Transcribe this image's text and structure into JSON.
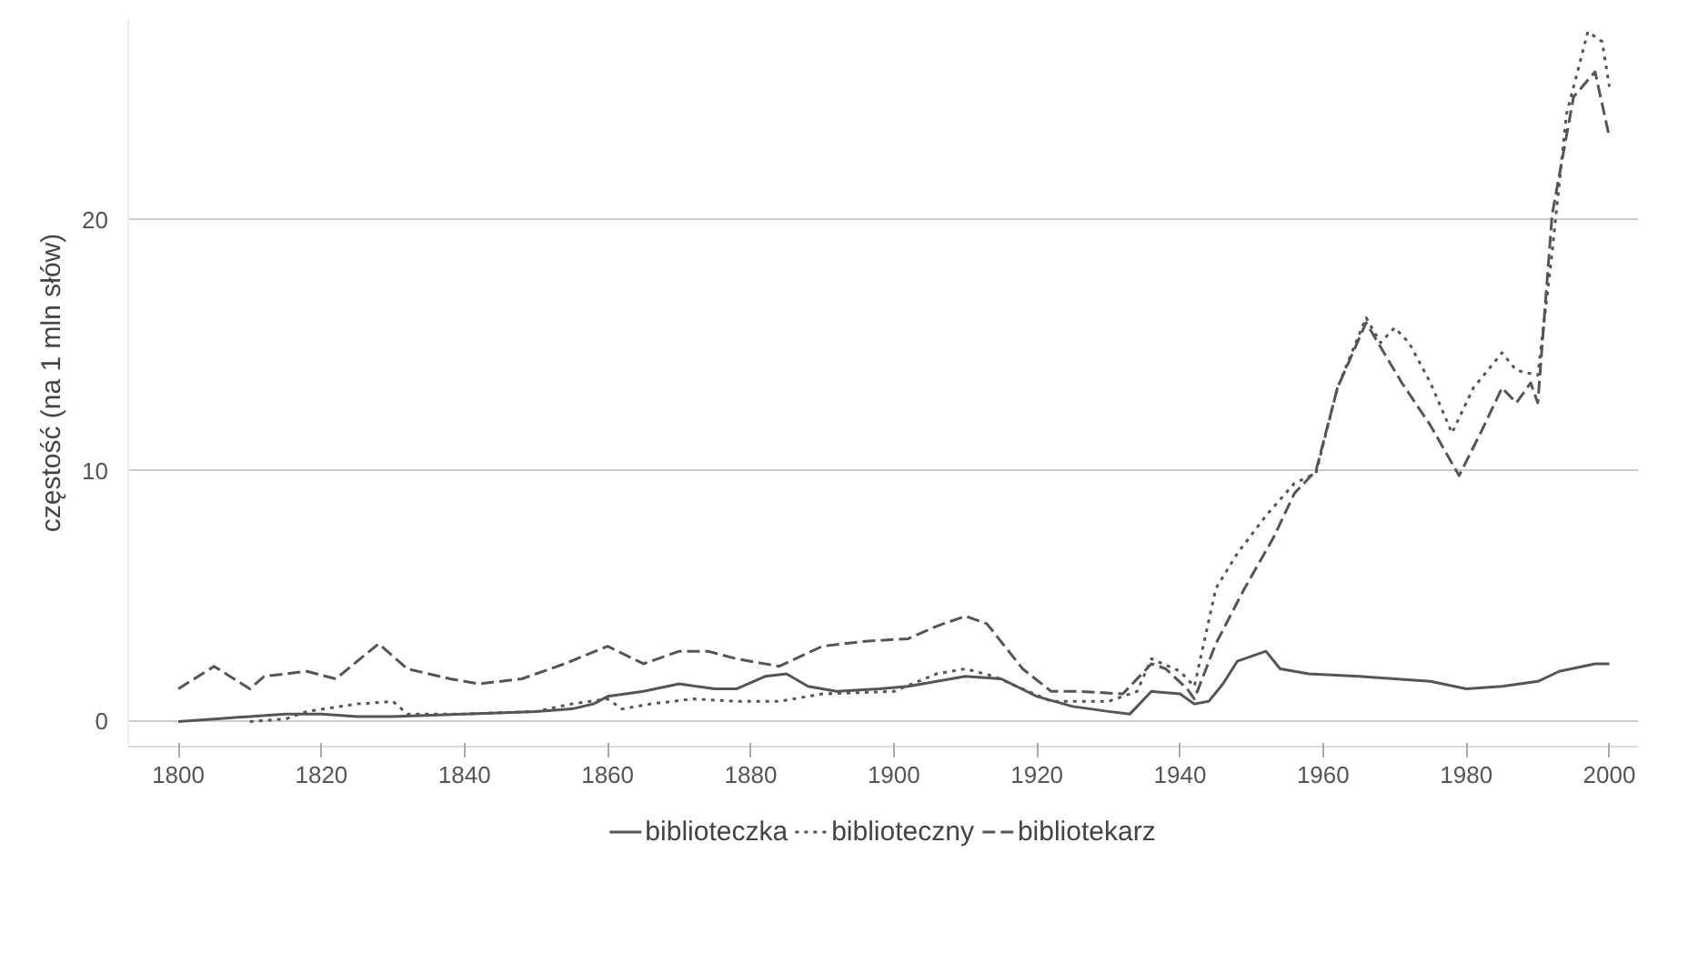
{
  "chart_data": {
    "type": "line",
    "ylabel": "częstość (na 1 mln słów)",
    "xlim": [
      1793,
      2004
    ],
    "xticks": [
      1800,
      1820,
      1840,
      1860,
      1880,
      1900,
      1920,
      1940,
      1960,
      1980,
      2000
    ],
    "ylim": [
      -1,
      28
    ],
    "yticks": [
      0,
      10,
      20
    ],
    "grid": "y",
    "legend": "bottom",
    "series": [
      {
        "name": "biblioteczka",
        "color": "#555555",
        "line_style": "solid",
        "x": [
          1800,
          1805,
          1810,
          1815,
          1820,
          1825,
          1830,
          1840,
          1850,
          1855,
          1858,
          1860,
          1865,
          1870,
          1875,
          1878,
          1882,
          1885,
          1888,
          1892,
          1898,
          1902,
          1906,
          1910,
          1915,
          1920,
          1925,
          1930,
          1933,
          1936,
          1940,
          1942,
          1944,
          1946,
          1948,
          1952,
          1954,
          1958,
          1965,
          1970,
          1975,
          1980,
          1985,
          1990,
          1993,
          1998,
          2000
        ],
        "values": [
          0,
          0.1,
          0.2,
          0.3,
          0.3,
          0.2,
          0.2,
          0.3,
          0.4,
          0.5,
          0.7,
          1.0,
          1.2,
          1.5,
          1.3,
          1.3,
          1.8,
          1.9,
          1.4,
          1.2,
          1.3,
          1.4,
          1.6,
          1.8,
          1.7,
          1.0,
          0.6,
          0.4,
          0.3,
          1.2,
          1.1,
          0.7,
          0.8,
          1.5,
          2.4,
          2.8,
          2.1,
          1.9,
          1.8,
          1.7,
          1.6,
          1.3,
          1.4,
          1.6,
          2.0,
          2.3,
          2.3
        ]
      },
      {
        "name": "biblioteczny",
        "color": "#555555",
        "line_style": "dotted",
        "x": [
          1810,
          1815,
          1818,
          1825,
          1830,
          1832,
          1840,
          1850,
          1855,
          1860,
          1862,
          1866,
          1872,
          1878,
          1884,
          1890,
          1900,
          1906,
          1910,
          1914,
          1918,
          1922,
          1930,
          1934,
          1936,
          1940,
          1942,
          1945,
          1948,
          1952,
          1956,
          1959,
          1962,
          1966,
          1968,
          1970,
          1972,
          1975,
          1978,
          1981,
          1985,
          1987,
          1990,
          1992,
          1994,
          1997,
          1999,
          2000
        ],
        "values": [
          0,
          0.1,
          0.4,
          0.7,
          0.8,
          0.3,
          0.3,
          0.4,
          0.7,
          0.9,
          0.5,
          0.7,
          0.9,
          0.8,
          0.8,
          1.1,
          1.2,
          1.9,
          2.1,
          1.8,
          1.3,
          0.8,
          0.8,
          1.2,
          2.5,
          2.0,
          1.4,
          5.3,
          6.7,
          8.2,
          9.5,
          9.9,
          13.3,
          16.1,
          15.1,
          15.7,
          15.1,
          13.5,
          11.5,
          13.3,
          14.7,
          14.0,
          13.8,
          18.7,
          24.2,
          27.5,
          27.1,
          25.3
        ]
      },
      {
        "name": "bibliotekarz",
        "color": "#555555",
        "line_style": "dashed",
        "x": [
          1800,
          1805,
          1810,
          1812,
          1818,
          1822,
          1828,
          1832,
          1838,
          1842,
          1848,
          1854,
          1860,
          1865,
          1870,
          1874,
          1878,
          1884,
          1890,
          1896,
          1902,
          1906,
          1910,
          1913,
          1918,
          1922,
          1926,
          1932,
          1936,
          1938,
          1941,
          1942,
          1945,
          1949,
          1953,
          1956,
          1959,
          1962,
          1966,
          1971,
          1975,
          1979,
          1982,
          1985,
          1987,
          1989,
          1990,
          1992,
          1995,
          1998,
          2000
        ],
        "values": [
          1.3,
          2.2,
          1.3,
          1.8,
          2.0,
          1.7,
          3.1,
          2.1,
          1.7,
          1.5,
          1.7,
          2.3,
          3.0,
          2.3,
          2.8,
          2.8,
          2.5,
          2.2,
          3.0,
          3.2,
          3.3,
          3.8,
          4.2,
          3.9,
          2.1,
          1.2,
          1.2,
          1.1,
          2.3,
          2.1,
          1.3,
          0.9,
          3.1,
          5.3,
          7.3,
          9.1,
          10.0,
          13.3,
          15.9,
          13.5,
          11.8,
          9.8,
          11.5,
          13.3,
          12.7,
          13.5,
          12.7,
          20.2,
          24.9,
          25.9,
          23.3
        ]
      }
    ]
  }
}
